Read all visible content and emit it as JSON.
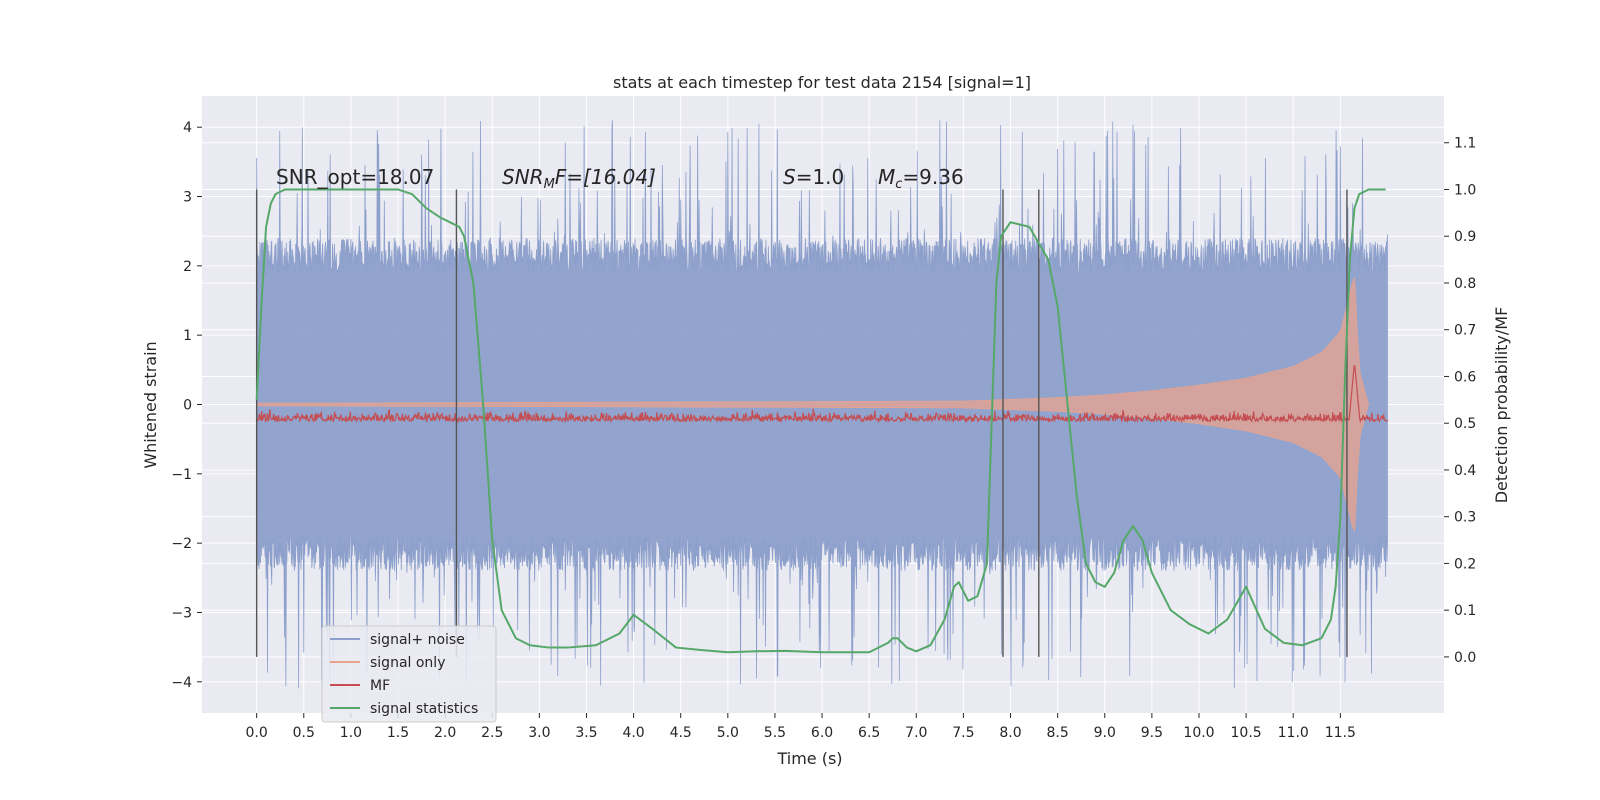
{
  "chart_data": {
    "type": "line",
    "title": "stats at each timestep for test data 2154 [signal=1]",
    "xlabel": "Time (s)",
    "ylabel": "Whitened strain",
    "ylabel_right": "Detection probability/MF",
    "xlim": [
      -0.58,
      12.6
    ],
    "ylim": [
      -4.45,
      4.45
    ],
    "ylim_right": [
      -0.12,
      1.2
    ],
    "x_ticks": [
      "0.0",
      "0.5",
      "1.0",
      "1.5",
      "2.0",
      "2.5",
      "3.0",
      "3.5",
      "4.0",
      "4.5",
      "5.0",
      "5.5",
      "6.0",
      "6.5",
      "7.0",
      "7.5",
      "8.0",
      "8.5",
      "9.0",
      "9.5",
      "10.0",
      "10.5",
      "11.0",
      "11.5"
    ],
    "y_ticks": [
      "4",
      "3",
      "2",
      "1",
      "0",
      "−1",
      "−2",
      "−3",
      "−4"
    ],
    "y_ticks_right": [
      "1.1",
      "1.0",
      "0.9",
      "0.8",
      "0.7",
      "0.6",
      "0.5",
      "0.4",
      "0.3",
      "0.2",
      "0.1",
      "0.0"
    ],
    "grid": true,
    "legend_position": "lower-left",
    "annotations": {
      "snr_opt": "SNR_opt=18.07",
      "snr_mf_label": "SNR",
      "snr_mf_sub": "M",
      "snr_mf_rest": "F=[16.04]",
      "s_label": "S",
      "s_value": "=1.0",
      "mc_label": "M",
      "mc_sub": "c",
      "mc_value": "=9.36"
    },
    "series": [
      {
        "name": "signal+ noise",
        "color": "#8da0cb",
        "x_range": [
          0.0,
          12.0
        ],
        "envelope_typical": 2.4,
        "envelope_peak": 4.1
      },
      {
        "name": "signal only",
        "color": "#e9a38c",
        "x": [
          0.0,
          7.5,
          8.5,
          9.0,
          9.5,
          10.0,
          10.5,
          11.0,
          11.3,
          11.5,
          11.6,
          11.65,
          11.7,
          11.8
        ],
        "amplitude": [
          0.02,
          0.05,
          0.1,
          0.14,
          0.2,
          0.28,
          0.38,
          0.55,
          0.75,
          1.05,
          1.6,
          1.9,
          0.5,
          0.0
        ]
      },
      {
        "name": "MF",
        "color": "#c44e52",
        "x_range": [
          0.0,
          12.0
        ],
        "baseline": 0.5,
        "peak_x": 11.65,
        "peak_value": 0.63
      },
      {
        "name": "signal statistics",
        "color": "#55a868",
        "x": [
          0.0,
          0.05,
          0.1,
          0.15,
          0.2,
          0.3,
          0.5,
          0.8,
          1.2,
          1.5,
          1.65,
          1.8,
          1.95,
          2.05,
          2.15,
          2.2,
          2.3,
          2.4,
          2.5,
          2.6,
          2.75,
          2.9,
          3.1,
          3.3,
          3.6,
          3.85,
          4.0,
          4.2,
          4.45,
          4.7,
          5.0,
          5.3,
          5.6,
          6.0,
          6.5,
          6.7,
          6.75,
          6.8,
          6.9,
          7.0,
          7.15,
          7.3,
          7.4,
          7.45,
          7.5,
          7.55,
          7.65,
          7.75,
          7.8,
          7.85,
          7.9,
          8.0,
          8.2,
          8.4,
          8.5,
          8.6,
          8.7,
          8.8,
          8.9,
          9.0,
          9.1,
          9.2,
          9.3,
          9.4,
          9.5,
          9.7,
          9.9,
          10.1,
          10.3,
          10.5,
          10.7,
          10.9,
          11.1,
          11.3,
          11.4,
          11.45,
          11.5,
          11.55,
          11.6,
          11.65,
          11.7,
          11.8,
          11.9,
          11.98
        ],
        "y": [
          0.55,
          0.75,
          0.92,
          0.97,
          0.99,
          1.0,
          1.0,
          1.0,
          1.0,
          1.0,
          0.99,
          0.96,
          0.94,
          0.93,
          0.92,
          0.9,
          0.8,
          0.55,
          0.25,
          0.1,
          0.04,
          0.025,
          0.02,
          0.02,
          0.025,
          0.05,
          0.09,
          0.06,
          0.02,
          0.015,
          0.01,
          0.012,
          0.013,
          0.01,
          0.01,
          0.03,
          0.04,
          0.04,
          0.02,
          0.012,
          0.025,
          0.08,
          0.15,
          0.16,
          0.14,
          0.12,
          0.13,
          0.2,
          0.5,
          0.8,
          0.9,
          0.93,
          0.92,
          0.85,
          0.75,
          0.55,
          0.35,
          0.2,
          0.16,
          0.15,
          0.18,
          0.25,
          0.28,
          0.25,
          0.18,
          0.1,
          0.07,
          0.05,
          0.08,
          0.15,
          0.06,
          0.03,
          0.025,
          0.04,
          0.08,
          0.15,
          0.3,
          0.6,
          0.85,
          0.96,
          0.99,
          1.0,
          1.0,
          1.0
        ]
      }
    ],
    "vertical_markers": [
      0.0,
      2.12,
      7.92,
      8.3,
      11.57
    ]
  }
}
